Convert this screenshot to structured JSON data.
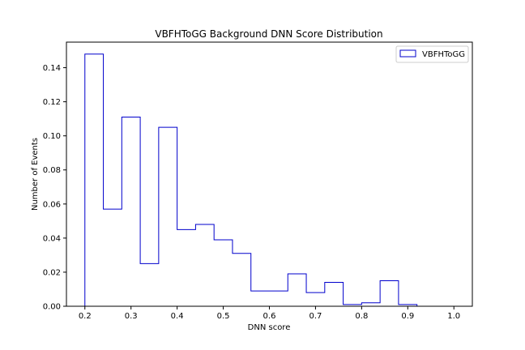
{
  "chart_data": {
    "type": "step-histogram",
    "title": "VBFHToGG Background DNN Score Distribution",
    "xlabel": "DNN score",
    "ylabel": "Number of Events",
    "xlim": [
      0.16,
      1.04
    ],
    "ylim": [
      0.0,
      0.155
    ],
    "xticks": [
      "0.2",
      "0.3",
      "0.4",
      "0.5",
      "0.6",
      "0.7",
      "0.8",
      "0.9",
      "1.0"
    ],
    "yticks": [
      "0.00",
      "0.02",
      "0.04",
      "0.06",
      "0.08",
      "0.10",
      "0.12",
      "0.14"
    ],
    "legend_position": "upper right",
    "grid": false,
    "series": [
      {
        "name": "VBFHToGG",
        "color": "#0000cc",
        "bin_edges": [
          0.2,
          0.24,
          0.28,
          0.32,
          0.36,
          0.4,
          0.44,
          0.48,
          0.52,
          0.56,
          0.6,
          0.64,
          0.68,
          0.72,
          0.76,
          0.8,
          0.84,
          0.88,
          0.92,
          0.96,
          1.0
        ],
        "values": [
          0.148,
          0.057,
          0.111,
          0.025,
          0.105,
          0.045,
          0.048,
          0.039,
          0.031,
          0.009,
          0.009,
          0.019,
          0.008,
          0.014,
          0.001,
          0.002,
          0.015,
          0.001,
          0.0,
          0.0
        ]
      }
    ]
  }
}
